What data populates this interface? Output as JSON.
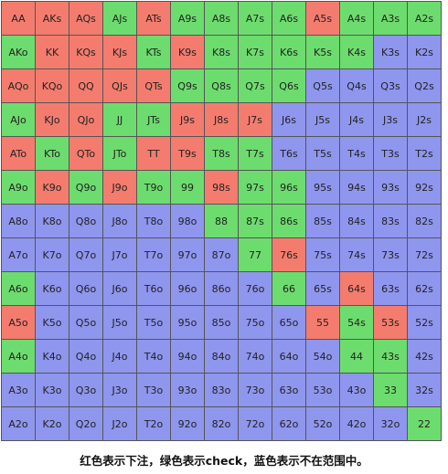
{
  "legend_colors": {
    "r": "#f47c6e",
    "g": "#6ddc6e",
    "b": "#8f96ee"
  },
  "caption": "红色表示下注，绿色表示check，蓝色表示不在范围中。",
  "grid": [
    [
      [
        "AA",
        "r"
      ],
      [
        "AKs",
        "r"
      ],
      [
        "AQs",
        "r"
      ],
      [
        "AJs",
        "g"
      ],
      [
        "ATs",
        "r"
      ],
      [
        "A9s",
        "g"
      ],
      [
        "A8s",
        "g"
      ],
      [
        "A7s",
        "g"
      ],
      [
        "A6s",
        "g"
      ],
      [
        "A5s",
        "r"
      ],
      [
        "A4s",
        "g"
      ],
      [
        "A3s",
        "g"
      ],
      [
        "A2s",
        "g"
      ]
    ],
    [
      [
        "AKo",
        "g"
      ],
      [
        "KK",
        "r"
      ],
      [
        "KQs",
        "r"
      ],
      [
        "KJs",
        "r"
      ],
      [
        "KTs",
        "g"
      ],
      [
        "K9s",
        "r"
      ],
      [
        "K8s",
        "g"
      ],
      [
        "K7s",
        "g"
      ],
      [
        "K6s",
        "g"
      ],
      [
        "K5s",
        "g"
      ],
      [
        "K4s",
        "g"
      ],
      [
        "K3s",
        "b"
      ],
      [
        "K2s",
        "b"
      ]
    ],
    [
      [
        "AQo",
        "r"
      ],
      [
        "KQo",
        "r"
      ],
      [
        "QQ",
        "r"
      ],
      [
        "QJs",
        "r"
      ],
      [
        "QTs",
        "r"
      ],
      [
        "Q9s",
        "g"
      ],
      [
        "Q8s",
        "g"
      ],
      [
        "Q7s",
        "g"
      ],
      [
        "Q6s",
        "g"
      ],
      [
        "Q5s",
        "b"
      ],
      [
        "Q4s",
        "b"
      ],
      [
        "Q3s",
        "b"
      ],
      [
        "Q2s",
        "b"
      ]
    ],
    [
      [
        "AJo",
        "g"
      ],
      [
        "KJo",
        "r"
      ],
      [
        "QJo",
        "r"
      ],
      [
        "JJ",
        "g"
      ],
      [
        "JTs",
        "g"
      ],
      [
        "J9s",
        "r"
      ],
      [
        "J8s",
        "r"
      ],
      [
        "J7s",
        "r"
      ],
      [
        "J6s",
        "b"
      ],
      [
        "J5s",
        "b"
      ],
      [
        "J4s",
        "b"
      ],
      [
        "J3s",
        "b"
      ],
      [
        "J2s",
        "b"
      ]
    ],
    [
      [
        "ATo",
        "r"
      ],
      [
        "KTo",
        "g"
      ],
      [
        "QTo",
        "r"
      ],
      [
        "JTo",
        "g"
      ],
      [
        "TT",
        "r"
      ],
      [
        "T9s",
        "r"
      ],
      [
        "T8s",
        "g"
      ],
      [
        "T7s",
        "g"
      ],
      [
        "T6s",
        "b"
      ],
      [
        "T5s",
        "b"
      ],
      [
        "T4s",
        "b"
      ],
      [
        "T3s",
        "b"
      ],
      [
        "T2s",
        "b"
      ]
    ],
    [
      [
        "A9o",
        "g"
      ],
      [
        "K9o",
        "r"
      ],
      [
        "Q9o",
        "g"
      ],
      [
        "J9o",
        "r"
      ],
      [
        "T9o",
        "g"
      ],
      [
        "99",
        "g"
      ],
      [
        "98s",
        "r"
      ],
      [
        "97s",
        "g"
      ],
      [
        "96s",
        "g"
      ],
      [
        "95s",
        "b"
      ],
      [
        "94s",
        "b"
      ],
      [
        "93s",
        "b"
      ],
      [
        "92s",
        "b"
      ]
    ],
    [
      [
        "A8o",
        "b"
      ],
      [
        "K8o",
        "b"
      ],
      [
        "Q8o",
        "b"
      ],
      [
        "J8o",
        "b"
      ],
      [
        "T8o",
        "b"
      ],
      [
        "98o",
        "b"
      ],
      [
        "88",
        "g"
      ],
      [
        "87s",
        "g"
      ],
      [
        "86s",
        "g"
      ],
      [
        "85s",
        "b"
      ],
      [
        "84s",
        "b"
      ],
      [
        "83s",
        "b"
      ],
      [
        "82s",
        "b"
      ]
    ],
    [
      [
        "A7o",
        "b"
      ],
      [
        "K7o",
        "b"
      ],
      [
        "Q7o",
        "b"
      ],
      [
        "J7o",
        "b"
      ],
      [
        "T7o",
        "b"
      ],
      [
        "97o",
        "b"
      ],
      [
        "87o",
        "b"
      ],
      [
        "77",
        "g"
      ],
      [
        "76s",
        "r"
      ],
      [
        "75s",
        "b"
      ],
      [
        "74s",
        "b"
      ],
      [
        "73s",
        "b"
      ],
      [
        "72s",
        "b"
      ]
    ],
    [
      [
        "A6o",
        "g"
      ],
      [
        "K6o",
        "b"
      ],
      [
        "Q6o",
        "b"
      ],
      [
        "J6o",
        "b"
      ],
      [
        "T6o",
        "b"
      ],
      [
        "96o",
        "b"
      ],
      [
        "86o",
        "b"
      ],
      [
        "76o",
        "b"
      ],
      [
        "66",
        "g"
      ],
      [
        "65s",
        "b"
      ],
      [
        "64s",
        "r"
      ],
      [
        "63s",
        "b"
      ],
      [
        "62s",
        "b"
      ]
    ],
    [
      [
        "A5o",
        "r"
      ],
      [
        "K5o",
        "b"
      ],
      [
        "Q5o",
        "b"
      ],
      [
        "J5o",
        "b"
      ],
      [
        "T5o",
        "b"
      ],
      [
        "95o",
        "b"
      ],
      [
        "85o",
        "b"
      ],
      [
        "75o",
        "b"
      ],
      [
        "65o",
        "b"
      ],
      [
        "55",
        "r"
      ],
      [
        "54s",
        "g"
      ],
      [
        "53s",
        "r"
      ],
      [
        "52s",
        "b"
      ]
    ],
    [
      [
        "A4o",
        "g"
      ],
      [
        "K4o",
        "b"
      ],
      [
        "Q4o",
        "b"
      ],
      [
        "J4o",
        "b"
      ],
      [
        "T4o",
        "b"
      ],
      [
        "94o",
        "b"
      ],
      [
        "84o",
        "b"
      ],
      [
        "74o",
        "b"
      ],
      [
        "64o",
        "b"
      ],
      [
        "54o",
        "b"
      ],
      [
        "44",
        "g"
      ],
      [
        "43s",
        "g"
      ],
      [
        "42s",
        "b"
      ]
    ],
    [
      [
        "A3o",
        "b"
      ],
      [
        "K3o",
        "b"
      ],
      [
        "Q3o",
        "b"
      ],
      [
        "J3o",
        "b"
      ],
      [
        "T3o",
        "b"
      ],
      [
        "93o",
        "b"
      ],
      [
        "83o",
        "b"
      ],
      [
        "73o",
        "b"
      ],
      [
        "63o",
        "b"
      ],
      [
        "53o",
        "b"
      ],
      [
        "43o",
        "b"
      ],
      [
        "33",
        "g"
      ],
      [
        "32s",
        "b"
      ]
    ],
    [
      [
        "A2o",
        "b"
      ],
      [
        "K2o",
        "b"
      ],
      [
        "Q2o",
        "b"
      ],
      [
        "J2o",
        "b"
      ],
      [
        "T2o",
        "b"
      ],
      [
        "92o",
        "b"
      ],
      [
        "82o",
        "b"
      ],
      [
        "72o",
        "b"
      ],
      [
        "62o",
        "b"
      ],
      [
        "52o",
        "b"
      ],
      [
        "42o",
        "b"
      ],
      [
        "32o",
        "b"
      ],
      [
        "22",
        "g"
      ]
    ]
  ]
}
